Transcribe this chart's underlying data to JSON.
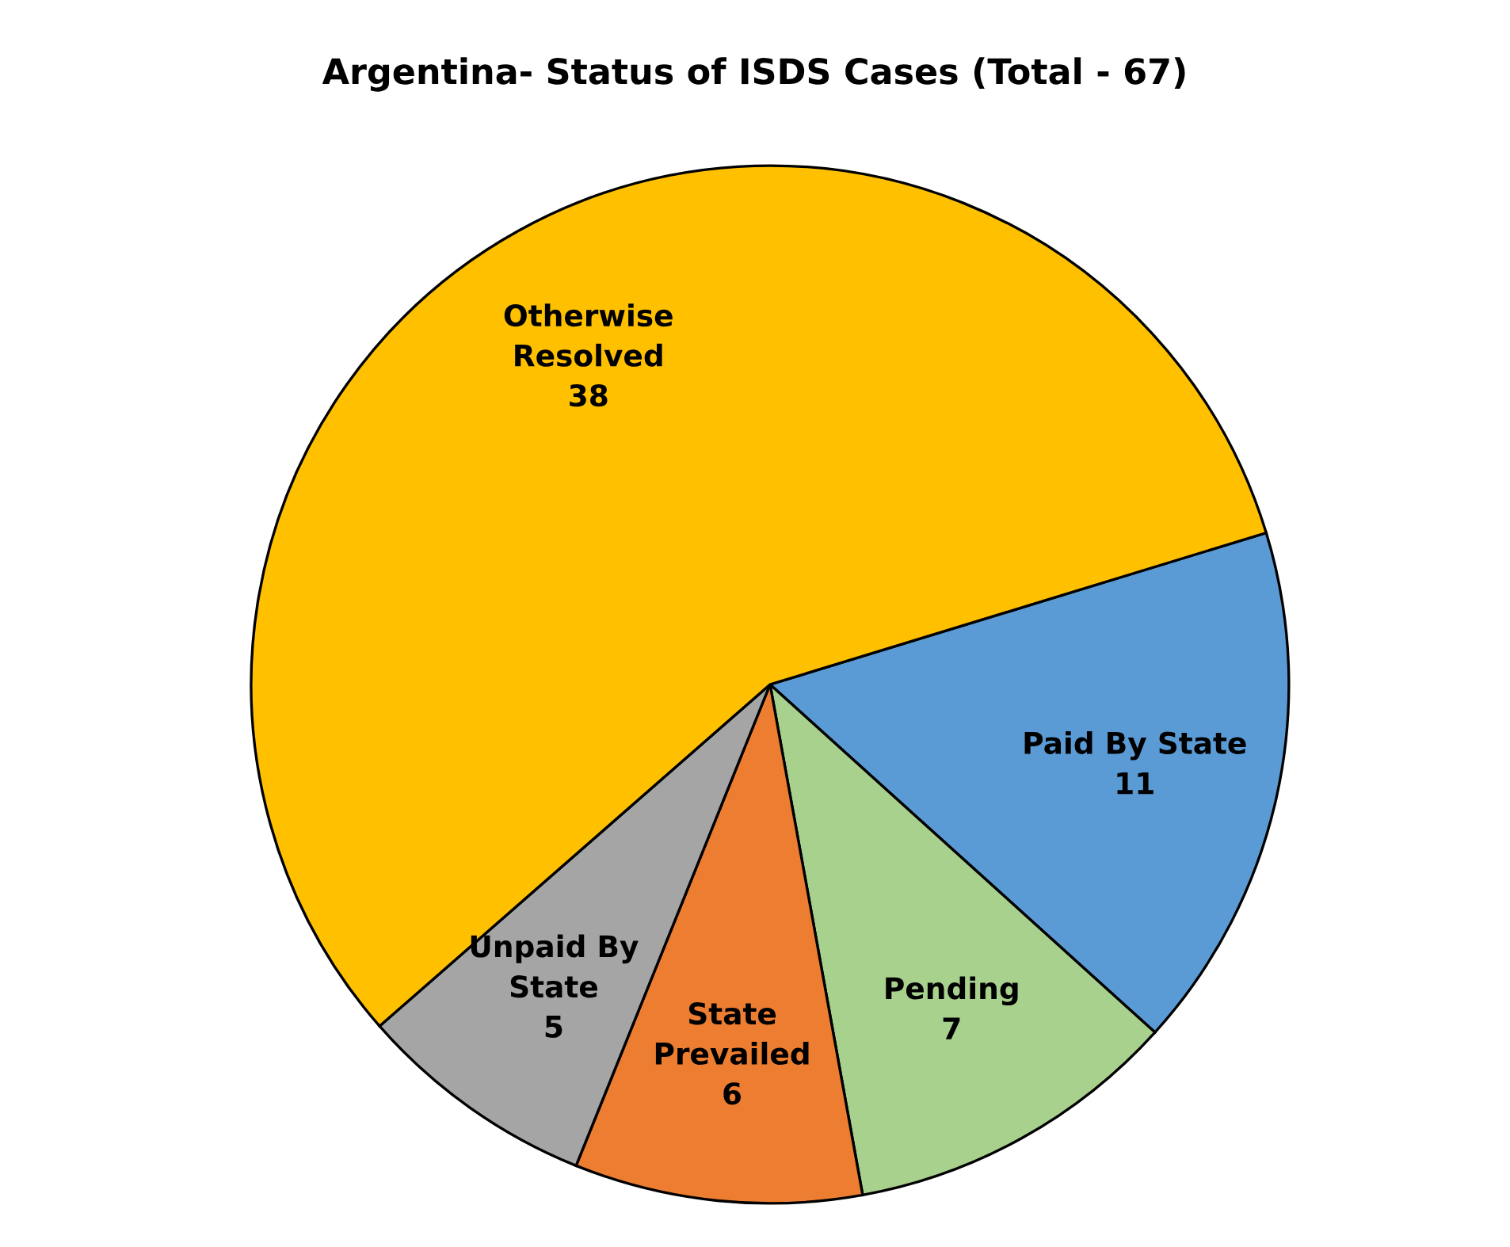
{
  "chart_data": {
    "type": "pie",
    "title": "Argentina- Status of ISDS Cases (Total - 67)",
    "categories": [
      "Paid By State",
      "Pending",
      "State\nPrevailed",
      "Unpaid By\nState",
      "Otherwise\nResolved"
    ],
    "values": [
      11,
      7,
      6,
      5,
      38
    ],
    "colors": [
      "#5b9bd5",
      "#a9d18e",
      "#ed7d31",
      "#a5a5a5",
      "#ffc000"
    ],
    "data_labels": true,
    "legend": false
  }
}
